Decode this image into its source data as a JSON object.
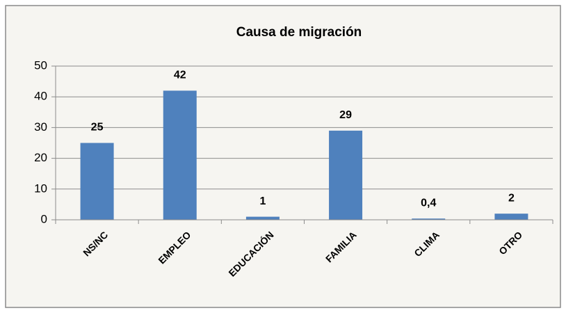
{
  "chart_data": {
    "type": "bar",
    "title": "Causa de migración",
    "categories": [
      "NS/NC",
      "EMPLEO",
      "EDUCACIÓN",
      "FAMILIA",
      "CLIMA",
      "OTRO"
    ],
    "values": [
      25,
      42,
      1,
      29,
      0.4,
      2
    ],
    "value_labels": [
      "25",
      "42",
      "1",
      "29",
      "0,4",
      "2"
    ],
    "color": "#4f81bd",
    "ylim": [
      0,
      50
    ],
    "yticks": [
      0,
      10,
      20,
      30,
      40,
      50
    ],
    "grid": true
  }
}
